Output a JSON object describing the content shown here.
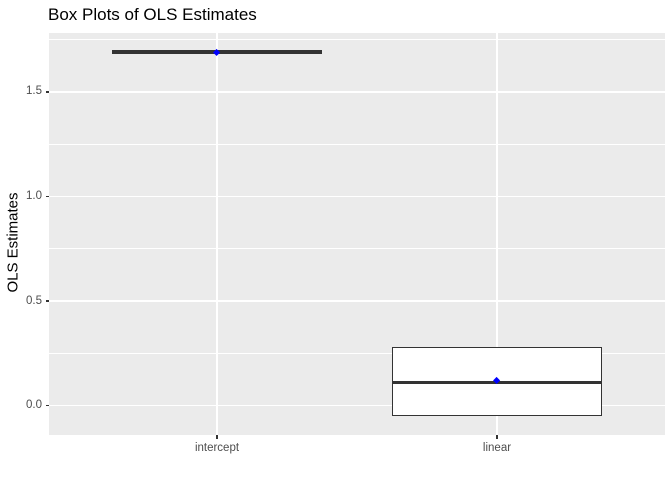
{
  "chart_data": {
    "type": "boxplot",
    "title": "Box Plots of OLS Estimates",
    "ylabel": "OLS Estimates",
    "xlabel": "",
    "categories": [
      "intercept",
      "linear"
    ],
    "series": [
      {
        "name": "intercept",
        "whisker_low": 1.68,
        "q1": 1.68,
        "median": 1.69,
        "q3": 1.7,
        "whisker_high": 1.7,
        "mean": 1.69
      },
      {
        "name": "linear",
        "whisker_low": -0.05,
        "q1": -0.05,
        "median": 0.11,
        "q3": 0.28,
        "whisker_high": 0.28,
        "mean": 0.12
      }
    ],
    "yticks": [
      0,
      0.5,
      1,
      1.5
    ],
    "ytick_labels": [
      "0.0",
      "0.5",
      "1.0",
      "1.5"
    ],
    "ylim": [
      -0.141,
      1.782
    ],
    "grid": true,
    "legend": false,
    "layout_hints": {
      "panel_background_visible": true,
      "major_and_minor_horizontal_gridlines": true,
      "vertical_gridline_per_category": true
    },
    "colors": {
      "background": "#FFFFFF",
      "panel_background": "#EBEBEB",
      "gridline": "#FFFFFF",
      "box_border": "#333333",
      "box_fill": "#FFFFFF",
      "median_line": "#333333",
      "mean_point": "#0000FF",
      "axis_text": "#4D4D4D",
      "title_text": "#000000",
      "tick_mark": "#333333"
    }
  }
}
